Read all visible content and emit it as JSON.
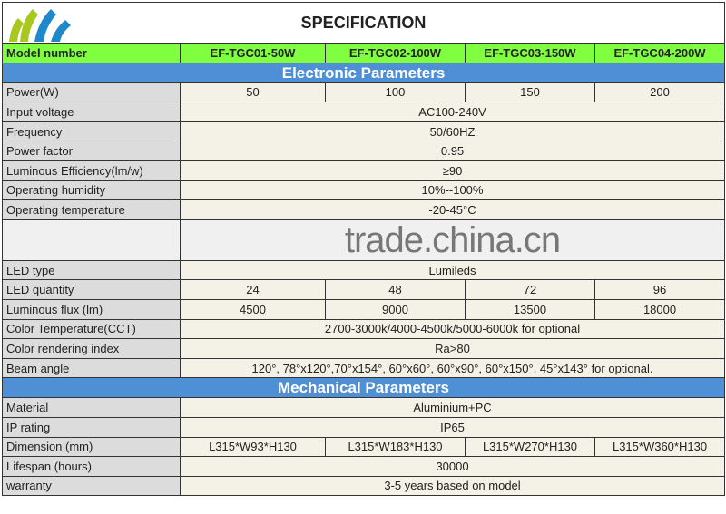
{
  "title": "SPECIFICATION",
  "watermark": "trade.china.cn",
  "colors": {
    "model_row": "#7fff3f",
    "section": "#4f8fd6",
    "label_bg": "#dcdcdc",
    "value_bg": "#f4f1e6"
  },
  "model_label": "Model number",
  "models": [
    "EF-TGC01-50W",
    "EF-TGC02-100W",
    "EF-TGC03-150W",
    "EF-TGC04-200W"
  ],
  "sections": [
    {
      "title": "Electronic Parameters",
      "rows": [
        {
          "label": "Power(W)",
          "values": [
            "50",
            "100",
            "150",
            "200"
          ]
        },
        {
          "label": "Input voltage",
          "value": "AC100-240V"
        },
        {
          "label": "Frequency",
          "value": "50/60HZ"
        },
        {
          "label": "Power factor",
          "value": "0.95"
        },
        {
          "label": "Luminous Efficiency(lm/w)",
          "value": "≥90"
        },
        {
          "label": "Operating humidity",
          "value": "10%--100%"
        },
        {
          "label": "Operating temperature",
          "value": "-20-45°C"
        },
        {
          "label": "",
          "value": ""
        },
        {
          "label": "LED type",
          "value": "Lumileds"
        },
        {
          "label": "LED quantity",
          "values": [
            "24",
            "48",
            "72",
            "96"
          ]
        },
        {
          "label": "Luminous flux (lm)",
          "values": [
            "4500",
            "9000",
            "13500",
            "18000"
          ]
        },
        {
          "label": "Color Temperature(CCT)",
          "value": "2700-3000k/4000-4500k/5000-6000k for optional"
        },
        {
          "label": "Color rendering index",
          "value": "Ra>80"
        },
        {
          "label": "Beam angle",
          "value": "120°, 78°x120°,70°x154°, 60°x60°, 60°x90°, 60°x150°, 45°x143° for optional."
        }
      ]
    },
    {
      "title": "Mechanical Parameters",
      "rows": [
        {
          "label": "Material",
          "value": "Aluminium+PC"
        },
        {
          "label": "IP rating",
          "value": "IP65"
        },
        {
          "label": "Dimension  (mm)",
          "values": [
            "L315*W93*H130",
            "L315*W183*H130",
            "L315*W270*H130",
            "L315*W360*H130"
          ]
        },
        {
          "label": "Lifespan (hours)",
          "value": "30000"
        },
        {
          "label": "warranty",
          "value": "3-5 years based on model"
        }
      ]
    }
  ]
}
